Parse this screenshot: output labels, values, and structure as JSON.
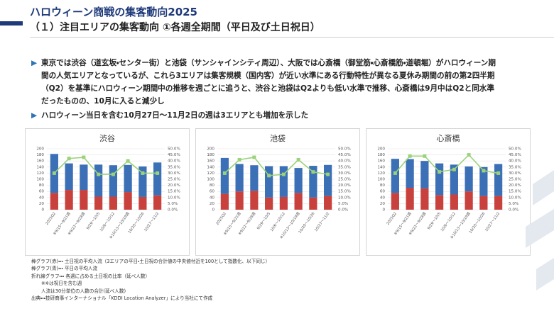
{
  "header": {
    "title": "ハロウィーン商戦の集客動向2025",
    "subtitle": "（１）注目エリアの集客動向 ①各週全期間（平日及び土日祝日）"
  },
  "bullets": [
    "東京では渋谷（道玄坂・センター街）と池袋（サンシャインシティ周辺）、大阪では心斎橋（御堂筋・心斎橋筋・道頓堀）がハロウィーン期間の人気エリアとなっているが、これら3エリアは集客規模（国内客）が近い水準にある行動特性が異なる夏休み期間の前の第2四半期（Q2）を基準にハロウィーン期間中の推移を週ごとに追うと、渋谷と池袋はQ2よりも低い水準で推移、心斎橋は9月中はQ2と同水準だったものの、10月に入ると減少し",
    "ハロウィーン当日を含む10月27日～11月2日の週は3エリアとも増加を示した"
  ],
  "chart_data": [
    {
      "type": "bar",
      "stacked": true,
      "title": "渋谷",
      "categories": [
        "2025Q2",
        "※9/15～9/21週",
        "※9/22～9/28週",
        "9/29～10/5",
        "10/6～10/12",
        "※10/13～10/19週",
        "10/20～10/26",
        "10/27～11/2"
      ],
      "series": [
        {
          "type": "bar",
          "color": "#c9413d",
          "values": [
            55,
            65,
            65,
            43,
            43,
            58,
            42,
            47
          ]
        },
        {
          "type": "bar",
          "color": "#3b6fb6",
          "values": [
            128,
            87,
            83,
            105,
            103,
            89,
            100,
            108
          ]
        },
        {
          "type": "line",
          "axis": "y2",
          "color": "#9bd27a",
          "values": [
            30,
            42,
            43,
            29,
            29,
            40,
            30,
            30
          ]
        }
      ],
      "ylim": [
        0,
        200
      ],
      "yticks": [
        0,
        20,
        40,
        60,
        80,
        100,
        120,
        140,
        160,
        180,
        200
      ],
      "y2lim": [
        0,
        50
      ],
      "y2ticks": [
        {
          "value": 0,
          "label": "0.0%"
        },
        {
          "value": 5,
          "label": "5.0%"
        },
        {
          "value": 10,
          "label": "10.0%"
        },
        {
          "value": 15,
          "label": "15.0%"
        },
        {
          "value": 20,
          "label": "20.0%"
        },
        {
          "value": 25,
          "label": "25.0%"
        },
        {
          "value": 30,
          "label": "30.0%"
        },
        {
          "value": 35,
          "label": "35.0%"
        },
        {
          "value": 40,
          "label": "40.0%"
        },
        {
          "value": 45,
          "label": "45.0%"
        },
        {
          "value": 50,
          "label": "50.0%"
        }
      ],
      "grid": true
    },
    {
      "type": "bar",
      "stacked": true,
      "title": "池袋",
      "categories": [
        "2025Q2",
        "※9/15～9/21週",
        "※9/22～9/28週",
        "9/29～10/5",
        "10/6～10/12",
        "※10/13～10/19週",
        "10/20～10/26",
        "10/27～11/2"
      ],
      "series": [
        {
          "type": "bar",
          "color": "#c9413d",
          "values": [
            52,
            60,
            62,
            40,
            42,
            55,
            40,
            45
          ]
        },
        {
          "type": "bar",
          "color": "#3b6fb6",
          "values": [
            118,
            90,
            84,
            103,
            101,
            82,
            104,
            102
          ]
        },
        {
          "type": "line",
          "axis": "y2",
          "color": "#9bd27a",
          "values": [
            30,
            41,
            43,
            28,
            29,
            41,
            31,
            29
          ]
        }
      ],
      "ylim": [
        0,
        200
      ],
      "yticks": [
        0,
        20,
        40,
        60,
        80,
        100,
        120,
        140,
        160,
        180,
        200
      ],
      "y2lim": [
        0,
        50
      ],
      "y2ticks": [
        {
          "value": 0,
          "label": "0.0%"
        },
        {
          "value": 5,
          "label": "5.0%"
        },
        {
          "value": 10,
          "label": "10.0%"
        },
        {
          "value": 15,
          "label": "15.0%"
        },
        {
          "value": 20,
          "label": "20.0%"
        },
        {
          "value": 25,
          "label": "25.0%"
        },
        {
          "value": 30,
          "label": "30.0%"
        },
        {
          "value": 35,
          "label": "35.0%"
        },
        {
          "value": 40,
          "label": "40.0%"
        },
        {
          "value": 45,
          "label": "45.0%"
        },
        {
          "value": 50,
          "label": "50.0%"
        }
      ],
      "grid": true
    },
    {
      "type": "bar",
      "stacked": true,
      "title": "心斎橋",
      "categories": [
        "2025Q2",
        "※9/15～9/21週",
        "※9/22～9/28週",
        "9/29～10/5",
        "10/6～10/12",
        "※10/13～10/19週",
        "10/20～10/26",
        "10/27～11/2"
      ],
      "series": [
        {
          "type": "bar",
          "color": "#c9413d",
          "values": [
            55,
            72,
            70,
            48,
            50,
            60,
            45,
            45
          ]
        },
        {
          "type": "bar",
          "color": "#3b6fb6",
          "values": [
            112,
            94,
            90,
            104,
            98,
            82,
            95,
            105
          ]
        },
        {
          "type": "line",
          "axis": "y2",
          "color": "#9bd27a",
          "values": [
            30,
            44,
            44,
            31,
            33,
            45,
            32,
            30
          ]
        }
      ],
      "ylim": [
        0,
        200
      ],
      "yticks": [
        0,
        20,
        40,
        60,
        80,
        100,
        120,
        140,
        160,
        180,
        200
      ],
      "y2lim": [
        0,
        50
      ],
      "y2ticks": [
        {
          "value": 0,
          "label": "0.0%"
        },
        {
          "value": 5,
          "label": "5.0%"
        },
        {
          "value": 10,
          "label": "10.0%"
        },
        {
          "value": 15,
          "label": "15.0%"
        },
        {
          "value": 20,
          "label": "20.0%"
        },
        {
          "value": 25,
          "label": "25.0%"
        },
        {
          "value": 30,
          "label": "30.0%"
        },
        {
          "value": 35,
          "label": "35.0%"
        },
        {
          "value": 40,
          "label": "40.0%"
        },
        {
          "value": 45,
          "label": "45.0%"
        },
        {
          "value": 50,
          "label": "50.0%"
        }
      ],
      "grid": true
    }
  ],
  "notes": [
    "棒グラフ(赤)・・・ 土日祝の平均人流（3エリアの平日・土日祝の合計値の中央値付近を100として指数化、以下同じ）",
    "棒グラフ(青)・・・ 平日の平均人流",
    "折れ線グラフ・・・ 各週に占める土日祝の比率（延べ人数）",
    "※※は祝日を含む週",
    "人流は30分単位の人数の合計(延べ人数)",
    "出典・・・技研商事インターナショナル「KDDI Location Analyzer」により当社にて作成"
  ]
}
